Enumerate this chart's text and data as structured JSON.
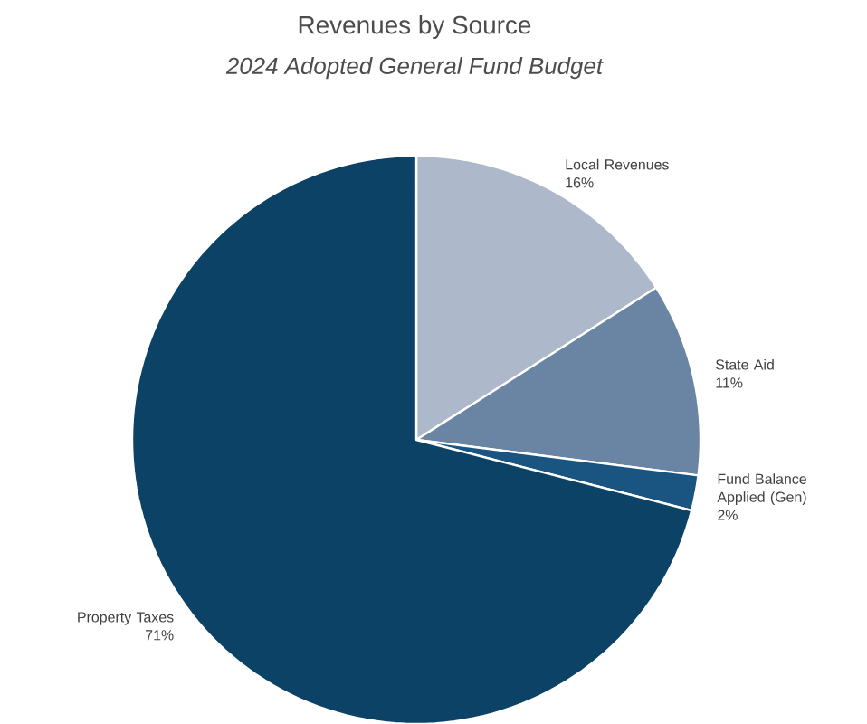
{
  "chart_data": {
    "type": "pie",
    "title": "Revenues by Source",
    "subtitle": "2024 Adopted General Fund Budget",
    "categories": [
      "Local Revenues",
      "State Aid",
      "Fund Balance Applied (Gen)",
      "Property Taxes"
    ],
    "values": [
      16,
      11,
      2,
      71
    ],
    "value_labels": [
      "16%",
      "11%",
      "2%",
      "71%"
    ],
    "colors": [
      "#adb9ca",
      "#6a84a3",
      "#1a5582",
      "#0b4266"
    ]
  }
}
